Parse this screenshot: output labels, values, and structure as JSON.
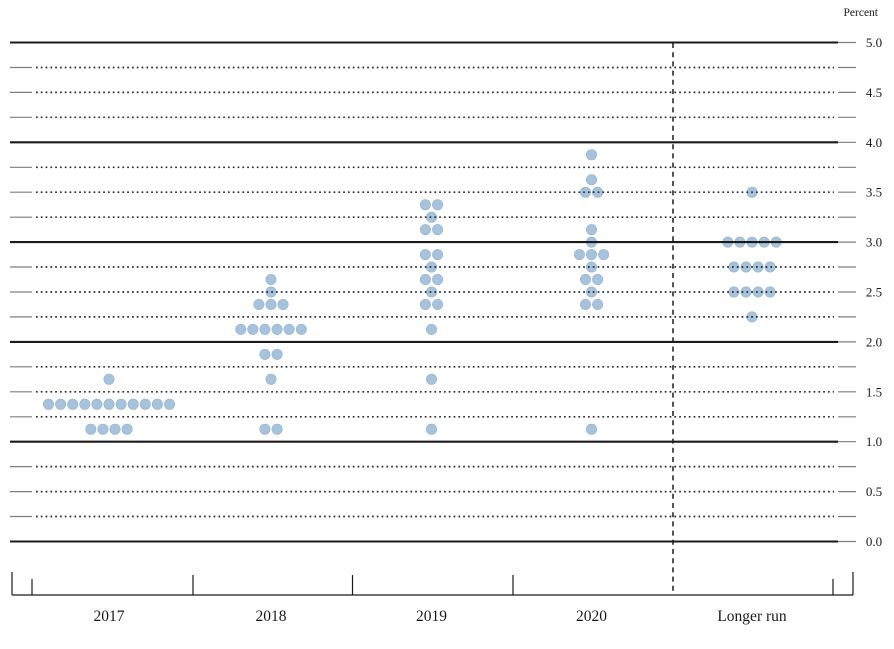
{
  "chart_data": {
    "type": "scatter",
    "subtype": "fomc-dot-plot",
    "title": "",
    "ylabel": "Percent",
    "xlabel": "",
    "legend": "none",
    "categories": [
      "2017",
      "2018",
      "2019",
      "2020",
      "Longer run"
    ],
    "y_axis": {
      "min": 0.0,
      "max": 5.0,
      "label_step": 0.5,
      "grid_step": 0.25,
      "tick_labels": [
        "5.0",
        "4.5",
        "4.0",
        "3.5",
        "3.0",
        "2.5",
        "2.0",
        "1.5",
        "1.0",
        "0.5",
        "0.0"
      ],
      "solid_gridlines_at": [
        0.0,
        1.0,
        2.0,
        3.0,
        4.0,
        5.0
      ],
      "dotted_gridlines_every": 0.25
    },
    "series": [
      {
        "category": "2017",
        "dots": [
          {
            "rate": 1.625,
            "count": 1
          },
          {
            "rate": 1.375,
            "count": 11
          },
          {
            "rate": 1.125,
            "count": 4
          }
        ]
      },
      {
        "category": "2018",
        "dots": [
          {
            "rate": 2.625,
            "count": 1
          },
          {
            "rate": 2.5,
            "count": 1
          },
          {
            "rate": 2.375,
            "count": 3
          },
          {
            "rate": 2.125,
            "count": 6
          },
          {
            "rate": 1.875,
            "count": 2
          },
          {
            "rate": 1.625,
            "count": 1
          },
          {
            "rate": 1.125,
            "count": 2
          }
        ]
      },
      {
        "category": "2019",
        "dots": [
          {
            "rate": 3.375,
            "count": 2
          },
          {
            "rate": 3.25,
            "count": 1
          },
          {
            "rate": 3.125,
            "count": 2
          },
          {
            "rate": 2.875,
            "count": 2
          },
          {
            "rate": 2.75,
            "count": 1
          },
          {
            "rate": 2.625,
            "count": 2
          },
          {
            "rate": 2.5,
            "count": 1
          },
          {
            "rate": 2.375,
            "count": 2
          },
          {
            "rate": 2.125,
            "count": 1
          },
          {
            "rate": 1.625,
            "count": 1
          },
          {
            "rate": 1.125,
            "count": 1
          }
        ]
      },
      {
        "category": "2020",
        "dots": [
          {
            "rate": 3.875,
            "count": 1
          },
          {
            "rate": 3.625,
            "count": 1
          },
          {
            "rate": 3.5,
            "count": 2
          },
          {
            "rate": 3.125,
            "count": 1
          },
          {
            "rate": 3.0,
            "count": 1
          },
          {
            "rate": 2.875,
            "count": 3
          },
          {
            "rate": 2.75,
            "count": 1
          },
          {
            "rate": 2.625,
            "count": 2
          },
          {
            "rate": 2.5,
            "count": 1
          },
          {
            "rate": 2.375,
            "count": 2
          },
          {
            "rate": 1.125,
            "count": 1
          }
        ]
      },
      {
        "category": "Longer run",
        "dots": [
          {
            "rate": 3.5,
            "count": 1
          },
          {
            "rate": 3.0,
            "count": 5
          },
          {
            "rate": 2.75,
            "count": 4
          },
          {
            "rate": 2.5,
            "count": 4
          },
          {
            "rate": 2.25,
            "count": 1
          }
        ]
      }
    ],
    "colors": {
      "dot_fill": "#a6c3db",
      "dot_edge": "#94b3ce",
      "solid_grid": "#1a1a1a",
      "dotted_grid": "#2a2a2a",
      "end_dash": "#7d7d7d",
      "axis": "#1a1a1a",
      "text": "#1a1a1a"
    },
    "layout_hints": {
      "separator_dashed_before": "Longer run",
      "gridlines": "solid at integers, dotted at quarter points, short gray dashes at both ends",
      "labels_right": true
    }
  }
}
